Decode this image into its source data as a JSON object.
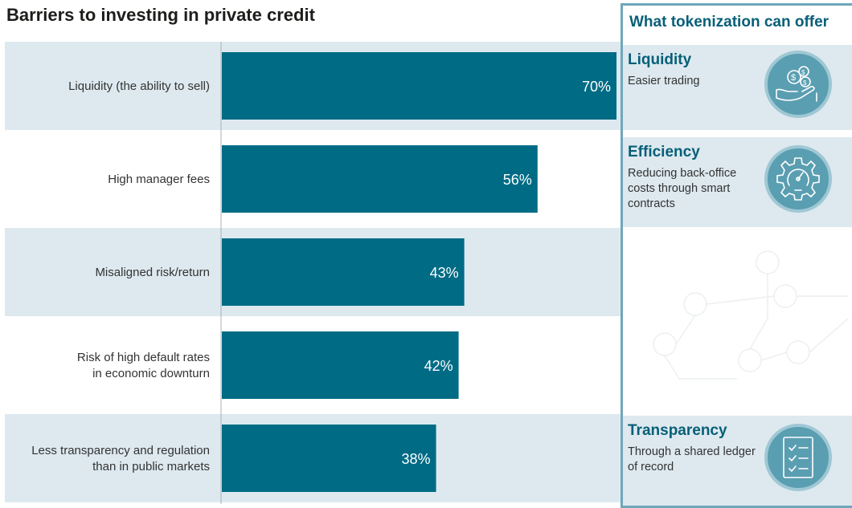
{
  "chart_data": {
    "type": "bar",
    "orientation": "horizontal",
    "title": "Barriers to investing in private credit",
    "categories": [
      "Liquidity (the ability to sell)",
      "High manager fees",
      "Misaligned risk/return",
      "Risk of high default rates in economic downturn",
      "Less transparency and regulation than in public markets"
    ],
    "category_lines": [
      [
        "Liquidity (the ability to sell)"
      ],
      [
        "High manager fees"
      ],
      [
        "Misaligned risk/return"
      ],
      [
        "Risk of high default rates",
        "in economic downturn"
      ],
      [
        "Less transparency and regulation",
        "than in public markets"
      ]
    ],
    "values": [
      70,
      56,
      43,
      42,
      38
    ],
    "value_labels": [
      "70%",
      "56%",
      "43%",
      "42%",
      "38%"
    ],
    "xlim": [
      0,
      70
    ],
    "grid": false,
    "legend": "none",
    "bar_color": "#006b85",
    "band_color": "#dde9ef"
  },
  "offer": {
    "title": "What tokenization can offer",
    "items": [
      {
        "name": "Liquidity",
        "description": "Easier trading",
        "icon": "money-hand-icon"
      },
      {
        "name": "Efficiency",
        "description": "Reducing back-office costs through smart contracts",
        "icon": "gear-gauge-icon"
      },
      {
        "name": "Transparency",
        "description": "Through a shared ledger of record",
        "icon": "checklist-icon"
      }
    ],
    "accent_color": "#075f78",
    "border_color": "#6fa7ba"
  }
}
